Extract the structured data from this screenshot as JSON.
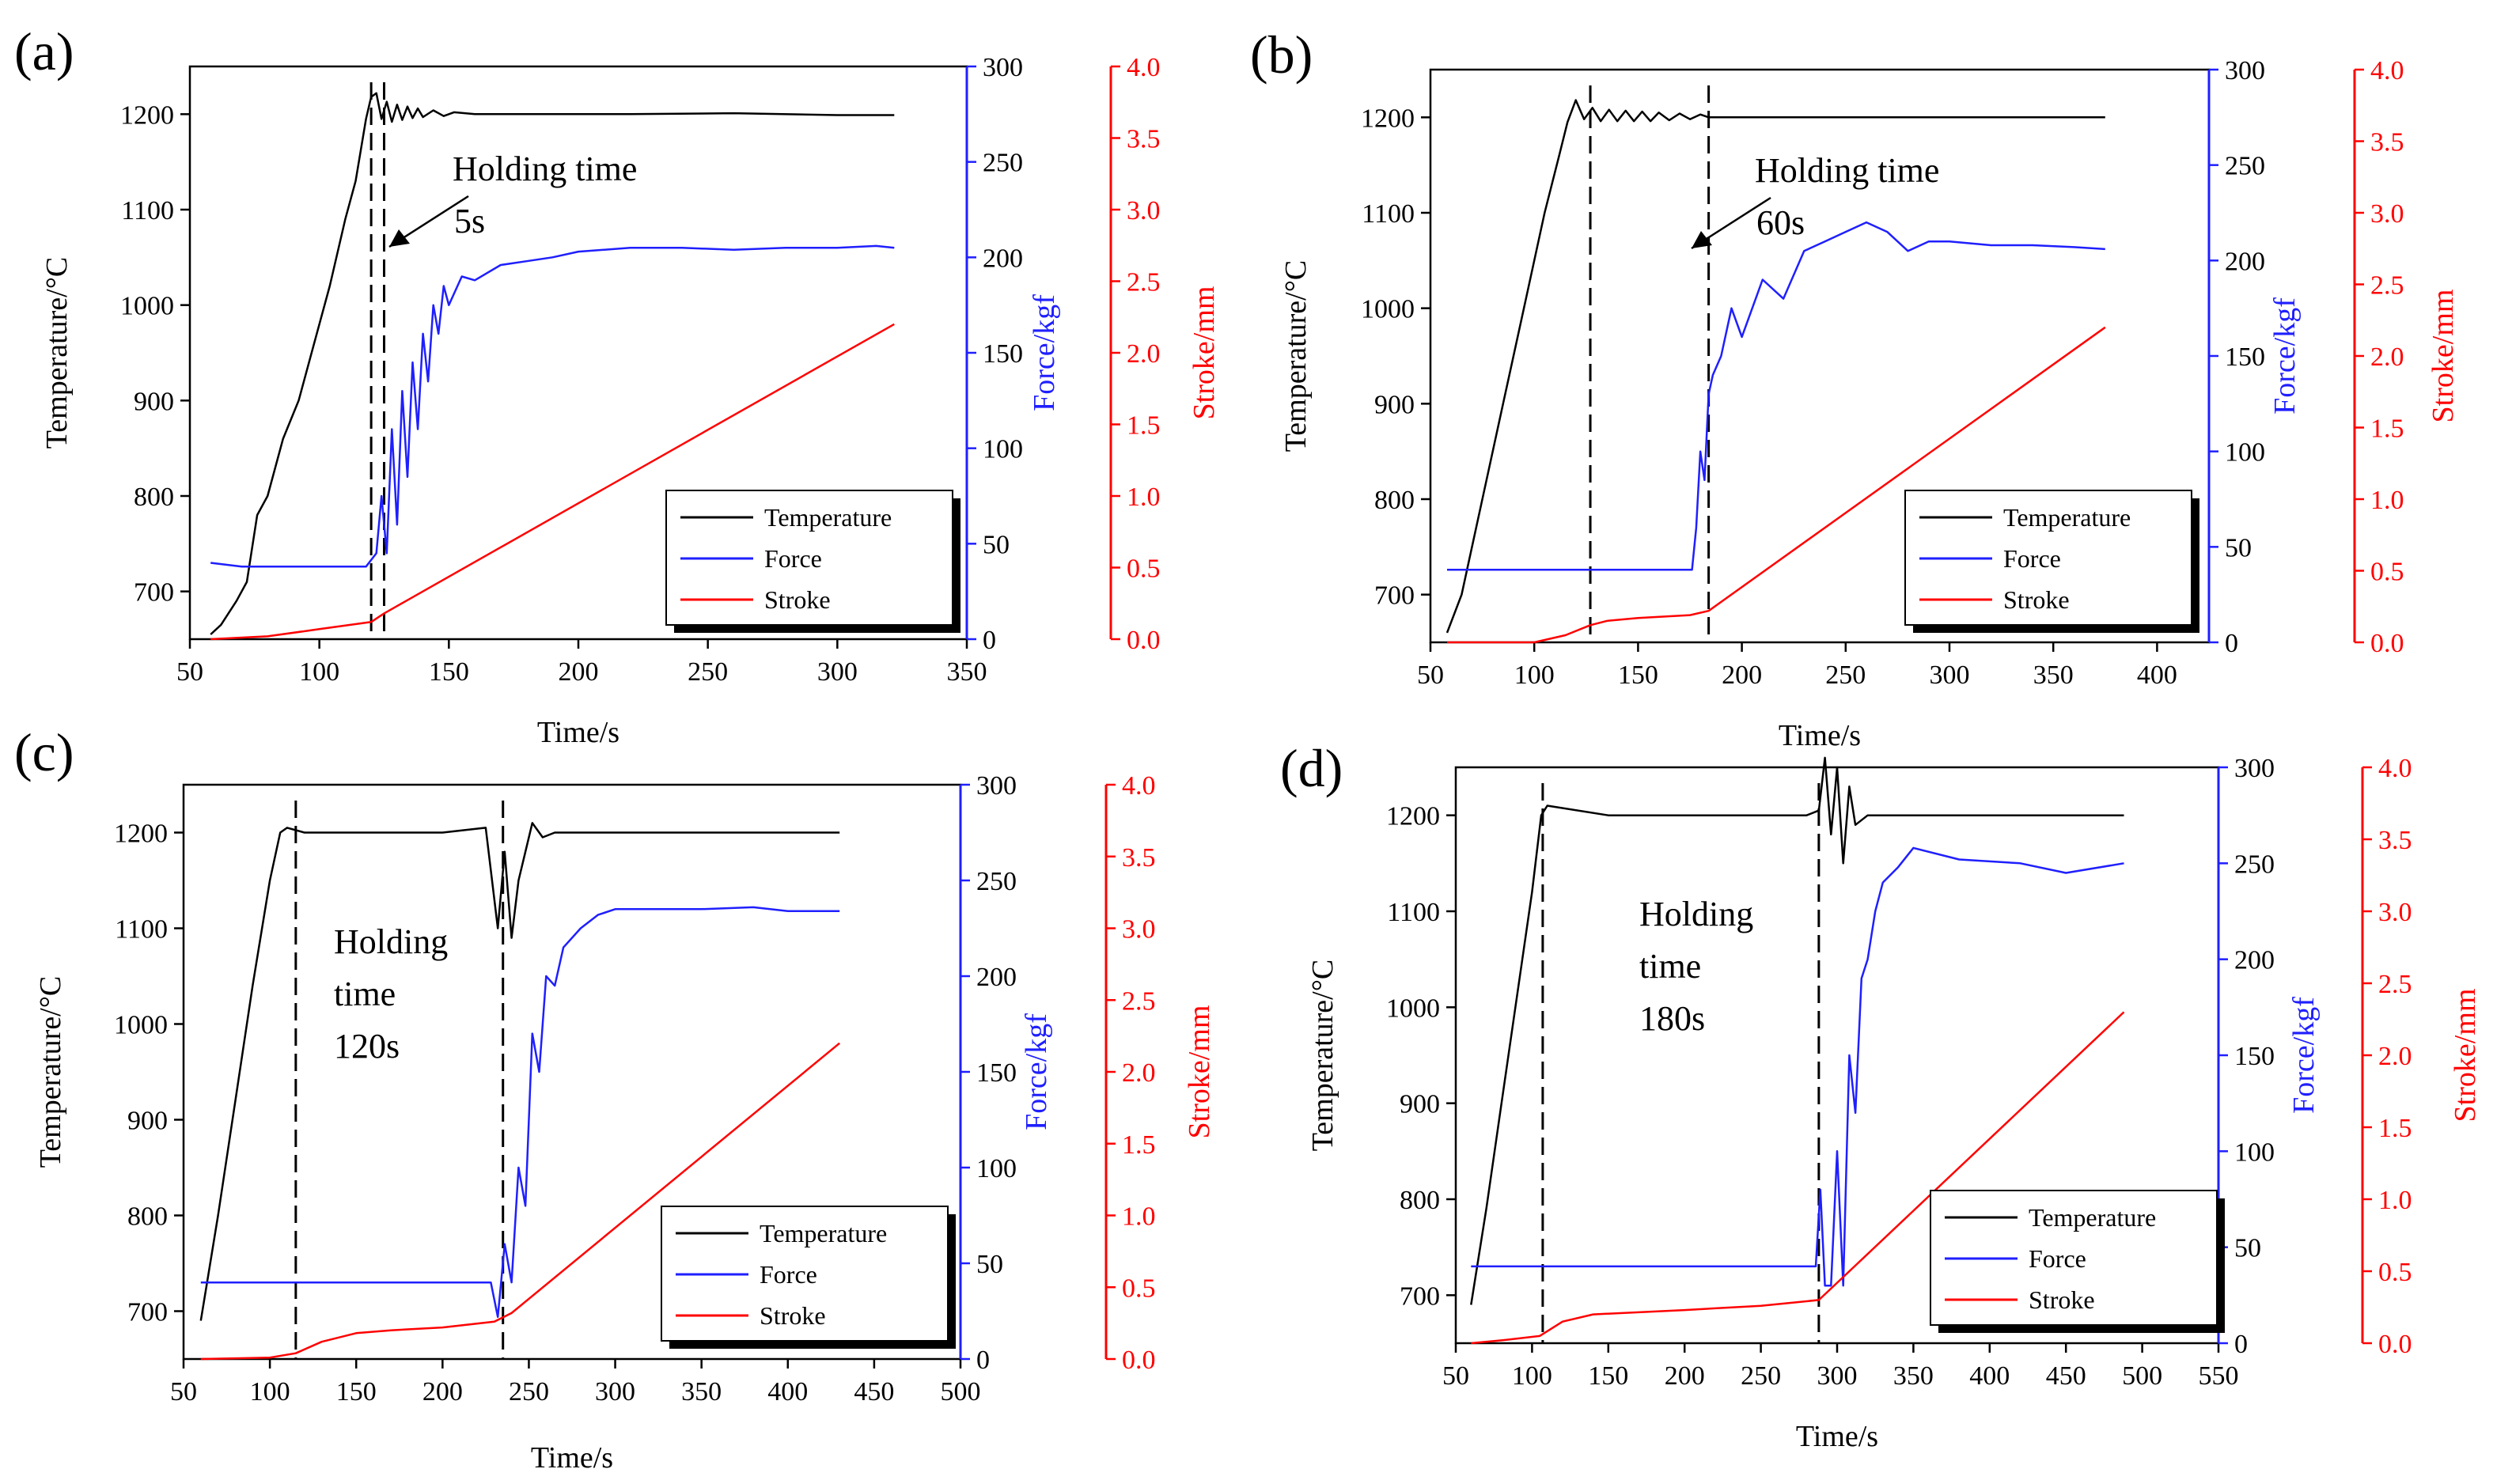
{
  "figure": {
    "description_labels": [
      "(a)",
      "(b)",
      "(c)",
      "(d)"
    ]
  },
  "chart_data": [
    {
      "panel": "(a)",
      "type": "line",
      "annotation": [
        "Holding time",
        "5s"
      ],
      "xlabel": "Time/s",
      "ylabel_left": "Temperature/°C",
      "ylabel_force": "Force/kgf",
      "ylabel_stroke": "Stroke/mm",
      "xlim": [
        50,
        350
      ],
      "xticks": [
        50,
        100,
        150,
        200,
        250,
        300,
        350
      ],
      "temp_lim": [
        650,
        1250
      ],
      "temp_ticks": [
        700,
        800,
        900,
        1000,
        1100,
        1200
      ],
      "force_lim": [
        0,
        300
      ],
      "force_ticks": [
        0,
        50,
        100,
        150,
        200,
        250,
        300
      ],
      "stroke_lim": [
        0,
        4
      ],
      "stroke_ticks": [
        "0.0",
        "0.5",
        "1.0",
        "1.5",
        "2.0",
        "2.5",
        "3.0",
        "3.5",
        "4.0"
      ],
      "holding_lines": [
        120,
        125
      ],
      "legend": [
        "Temperature",
        "Force",
        "Stroke"
      ],
      "colors": {
        "temperature": "#000000",
        "force": "#1f1fff",
        "stroke": "#ff0000"
      },
      "series": [
        {
          "name": "Temperature",
          "axis": "temp",
          "x": [
            58,
            62,
            68,
            72,
            76,
            80,
            86,
            92,
            98,
            104,
            110,
            114,
            118,
            120,
            122,
            124,
            126,
            128,
            130,
            132,
            134,
            136,
            138,
            140,
            144,
            148,
            152,
            160,
            180,
            220,
            260,
            300,
            322
          ],
          "y": [
            655,
            665,
            690,
            710,
            780,
            800,
            860,
            900,
            960,
            1020,
            1090,
            1130,
            1195,
            1218,
            1222,
            1195,
            1213,
            1192,
            1210,
            1194,
            1208,
            1196,
            1206,
            1197,
            1204,
            1198,
            1202,
            1200,
            1200,
            1200,
            1201,
            1199,
            1199
          ]
        },
        {
          "name": "Force",
          "axis": "force",
          "x": [
            58,
            70,
            100,
            118,
            122,
            124,
            126,
            128,
            130,
            132,
            134,
            136,
            138,
            140,
            142,
            144,
            146,
            148,
            150,
            155,
            160,
            170,
            180,
            190,
            200,
            220,
            240,
            260,
            280,
            300,
            315,
            322
          ],
          "y": [
            40,
            38,
            38,
            38,
            45,
            75,
            45,
            110,
            60,
            130,
            85,
            145,
            110,
            160,
            135,
            175,
            160,
            185,
            175,
            190,
            188,
            196,
            198,
            200,
            203,
            205,
            205,
            204,
            205,
            205,
            206,
            205
          ]
        },
        {
          "name": "Stroke",
          "axis": "stroke",
          "x": [
            58,
            80,
            100,
            120,
            125,
            322
          ],
          "y": [
            0.0,
            0.02,
            0.07,
            0.12,
            0.18,
            2.2
          ]
        }
      ]
    },
    {
      "panel": "(b)",
      "type": "line",
      "annotation": [
        "Holding time",
        "60s"
      ],
      "xlabel": "Time/s",
      "ylabel_left": "Temperature/°C",
      "ylabel_force": "Force/kgf",
      "ylabel_stroke": "Stroke/mm",
      "xlim": [
        50,
        425
      ],
      "xticks": [
        50,
        100,
        150,
        200,
        250,
        300,
        350,
        400
      ],
      "temp_lim": [
        650,
        1250
      ],
      "temp_ticks": [
        700,
        800,
        900,
        1000,
        1100,
        1200
      ],
      "force_lim": [
        0,
        300
      ],
      "force_ticks": [
        0,
        50,
        100,
        150,
        200,
        250,
        300
      ],
      "stroke_lim": [
        0,
        4
      ],
      "stroke_ticks": [
        "0.0",
        "0.5",
        "1.0",
        "1.5",
        "2.0",
        "2.5",
        "3.0",
        "3.5",
        "4.0"
      ],
      "holding_lines": [
        127,
        184
      ],
      "legend": [
        "Temperature",
        "Force",
        "Stroke"
      ],
      "colors": {
        "temperature": "#000000",
        "force": "#1f1fff",
        "stroke": "#ff0000"
      },
      "series": [
        {
          "name": "Temperature",
          "axis": "temp",
          "x": [
            58,
            65,
            75,
            85,
            95,
            105,
            112,
            116,
            120,
            124,
            128,
            132,
            136,
            140,
            144,
            148,
            152,
            156,
            160,
            165,
            170,
            175,
            180,
            184,
            200,
            250,
            300,
            350,
            375
          ],
          "y": [
            660,
            700,
            800,
            900,
            1000,
            1100,
            1160,
            1195,
            1218,
            1198,
            1210,
            1196,
            1208,
            1196,
            1207,
            1196,
            1206,
            1196,
            1205,
            1197,
            1204,
            1198,
            1203,
            1200,
            1200,
            1200,
            1200,
            1200,
            1200
          ]
        },
        {
          "name": "Force",
          "axis": "force",
          "x": [
            58,
            80,
            100,
            130,
            160,
            176,
            178,
            180,
            182,
            184,
            186,
            190,
            195,
            200,
            210,
            220,
            230,
            240,
            250,
            260,
            270,
            280,
            290,
            300,
            320,
            340,
            360,
            375
          ],
          "y": [
            38,
            38,
            38,
            38,
            38,
            38,
            60,
            100,
            85,
            130,
            140,
            150,
            175,
            160,
            190,
            180,
            205,
            210,
            215,
            220,
            215,
            205,
            210,
            210,
            208,
            208,
            207,
            206
          ]
        },
        {
          "name": "Stroke",
          "axis": "stroke",
          "x": [
            58,
            100,
            115,
            127,
            135,
            150,
            175,
            184,
            375
          ],
          "y": [
            0.0,
            0.0,
            0.05,
            0.12,
            0.15,
            0.17,
            0.19,
            0.22,
            2.2
          ]
        }
      ]
    },
    {
      "panel": "(c)",
      "type": "line",
      "annotation": [
        "Holding",
        "time",
        "120s"
      ],
      "xlabel": "Time/s",
      "ylabel_left": "Temperature/°C",
      "ylabel_force": "Force/kgf",
      "ylabel_stroke": "Stroke/mm",
      "xlim": [
        50,
        500
      ],
      "xticks": [
        50,
        100,
        150,
        200,
        250,
        300,
        350,
        400,
        450,
        500
      ],
      "temp_lim": [
        650,
        1250
      ],
      "temp_ticks": [
        700,
        800,
        900,
        1000,
        1100,
        1200
      ],
      "force_lim": [
        0,
        300
      ],
      "force_ticks": [
        0,
        50,
        100,
        150,
        200,
        250,
        300
      ],
      "stroke_lim": [
        0,
        4
      ],
      "stroke_ticks": [
        "0.0",
        "0.5",
        "1.0",
        "1.5",
        "2.0",
        "2.5",
        "3.0",
        "3.5",
        "4.0"
      ],
      "holding_lines": [
        115,
        235
      ],
      "legend": [
        "Temperature",
        "Force",
        "Stroke"
      ],
      "colors": {
        "temperature": "#000000",
        "force": "#1f1fff",
        "stroke": "#ff0000"
      },
      "series": [
        {
          "name": "Temperature",
          "axis": "temp",
          "x": [
            60,
            70,
            80,
            90,
            100,
            106,
            110,
            120,
            140,
            160,
            180,
            200,
            225,
            232,
            236,
            240,
            244,
            248,
            252,
            258,
            265,
            280,
            320,
            360,
            400,
            430
          ],
          "y": [
            690,
            800,
            920,
            1040,
            1150,
            1200,
            1205,
            1200,
            1200,
            1200,
            1200,
            1200,
            1205,
            1100,
            1180,
            1090,
            1150,
            1180,
            1210,
            1195,
            1200,
            1200,
            1200,
            1200,
            1200,
            1200
          ]
        },
        {
          "name": "Force",
          "axis": "force",
          "x": [
            60,
            100,
            150,
            200,
            228,
            232,
            236,
            240,
            244,
            248,
            252,
            256,
            260,
            265,
            270,
            280,
            290,
            300,
            320,
            350,
            380,
            400,
            430
          ],
          "y": [
            40,
            40,
            40,
            40,
            40,
            22,
            60,
            40,
            100,
            80,
            170,
            150,
            200,
            195,
            215,
            225,
            232,
            235,
            235,
            235,
            236,
            234,
            234
          ]
        },
        {
          "name": "Stroke",
          "axis": "stroke",
          "x": [
            60,
            100,
            115,
            130,
            150,
            170,
            200,
            230,
            240,
            430
          ],
          "y": [
            0.0,
            0.01,
            0.04,
            0.12,
            0.18,
            0.2,
            0.22,
            0.26,
            0.32,
            2.2
          ]
        }
      ]
    },
    {
      "panel": "(d)",
      "type": "line",
      "annotation": [
        "Holding",
        "time",
        "180s"
      ],
      "xlabel": "Time/s",
      "ylabel_left": "Temperature/°C",
      "ylabel_force": "Force/kgf",
      "ylabel_stroke": "Stroke/mm",
      "xlim": [
        50,
        550
      ],
      "xticks": [
        50,
        100,
        150,
        200,
        250,
        300,
        350,
        400,
        450,
        500,
        550
      ],
      "temp_lim": [
        650,
        1250
      ],
      "temp_ticks": [
        700,
        800,
        900,
        1000,
        1100,
        1200
      ],
      "force_lim": [
        0,
        300
      ],
      "force_ticks": [
        0,
        50,
        100,
        150,
        200,
        250,
        300
      ],
      "stroke_lim": [
        0,
        4
      ],
      "stroke_ticks": [
        "0.0",
        "0.5",
        "1.0",
        "1.5",
        "2.0",
        "2.5",
        "3.0",
        "3.5",
        "4.0"
      ],
      "holding_lines": [
        107,
        288
      ],
      "legend": [
        "Temperature",
        "Force",
        "Stroke"
      ],
      "colors": {
        "temperature": "#000000",
        "force": "#1f1fff",
        "stroke": "#ff0000"
      },
      "series": [
        {
          "name": "Temperature",
          "axis": "temp",
          "x": [
            60,
            70,
            80,
            90,
            100,
            106,
            110,
            150,
            200,
            250,
            280,
            288,
            292,
            296,
            300,
            304,
            308,
            312,
            320,
            340,
            380,
            420,
            460,
            488
          ],
          "y": [
            690,
            790,
            900,
            1010,
            1120,
            1200,
            1210,
            1200,
            1200,
            1200,
            1200,
            1205,
            1260,
            1180,
            1250,
            1150,
            1230,
            1190,
            1200,
            1200,
            1200,
            1200,
            1200,
            1200
          ]
        },
        {
          "name": "Force",
          "axis": "force",
          "x": [
            60,
            100,
            150,
            200,
            250,
            286,
            289,
            292,
            296,
            300,
            304,
            308,
            312,
            316,
            320,
            325,
            330,
            340,
            350,
            380,
            420,
            450,
            488
          ],
          "y": [
            40,
            40,
            40,
            40,
            40,
            40,
            80,
            30,
            30,
            100,
            30,
            150,
            120,
            190,
            200,
            225,
            240,
            248,
            258,
            252,
            250,
            245,
            250
          ]
        },
        {
          "name": "Stroke",
          "axis": "stroke",
          "x": [
            60,
            80,
            105,
            120,
            140,
            200,
            250,
            288,
            300,
            488
          ],
          "y": [
            0.0,
            0.02,
            0.05,
            0.15,
            0.2,
            0.23,
            0.26,
            0.3,
            0.42,
            2.3
          ]
        }
      ]
    }
  ]
}
